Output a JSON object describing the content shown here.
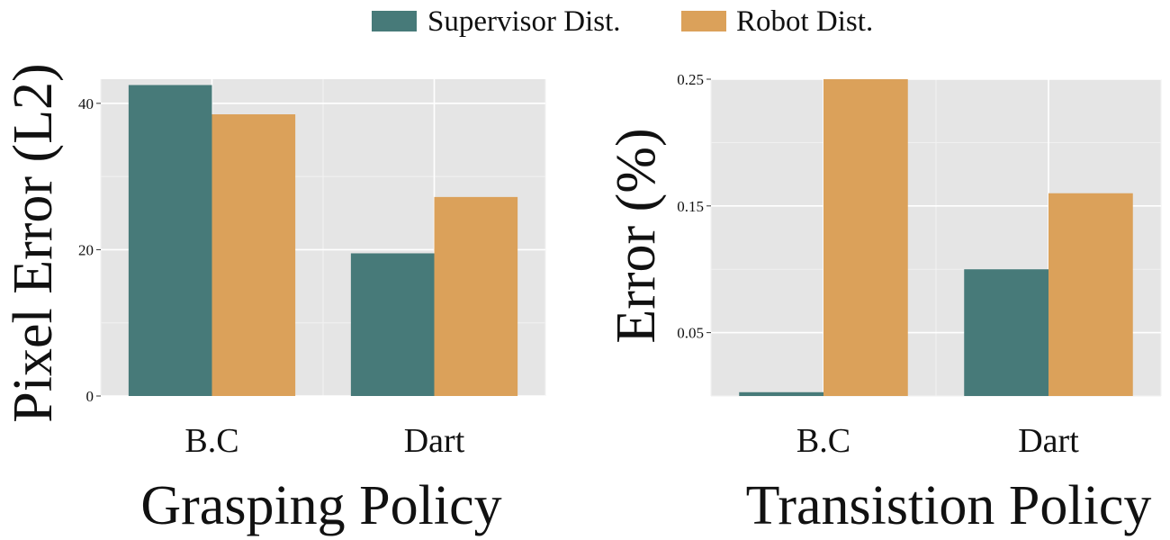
{
  "legend": [
    {
      "label": "Supervisor Dist.",
      "color": "#477a79"
    },
    {
      "label": "Robot Dist.",
      "color": "#dba15a"
    }
  ],
  "chart_data": [
    {
      "type": "bar",
      "categories": [
        "B.C",
        "Dart"
      ],
      "series": [
        {
          "name": "Supervisor Dist.",
          "values": [
            42.5,
            19.5
          ]
        },
        {
          "name": "Robot Dist.",
          "values": [
            38.5,
            27.2
          ]
        }
      ],
      "xlabel": "Grasping Policy",
      "ylabel": "Pixel Error (L2)",
      "ylim": [
        0,
        43.3
      ],
      "yticks": [
        0,
        20,
        40
      ],
      "ytick_labels": [
        "0",
        "20",
        "40"
      ],
      "grid": true,
      "legend_position": "top"
    },
    {
      "type": "bar",
      "categories": [
        "B.C",
        "Dart"
      ],
      "series": [
        {
          "name": "Supervisor Dist.",
          "values": [
            0.003,
            0.1
          ]
        },
        {
          "name": "Robot Dist.",
          "values": [
            0.25,
            0.16
          ]
        }
      ],
      "xlabel": "Transistion Policy",
      "ylabel": "Error (%)",
      "ylim": [
        0,
        0.25
      ],
      "yticks": [
        0.05,
        0.15,
        0.25
      ],
      "ytick_labels": [
        "0.05",
        "0.15",
        "0.25"
      ],
      "grid": true,
      "legend_position": "top"
    }
  ]
}
